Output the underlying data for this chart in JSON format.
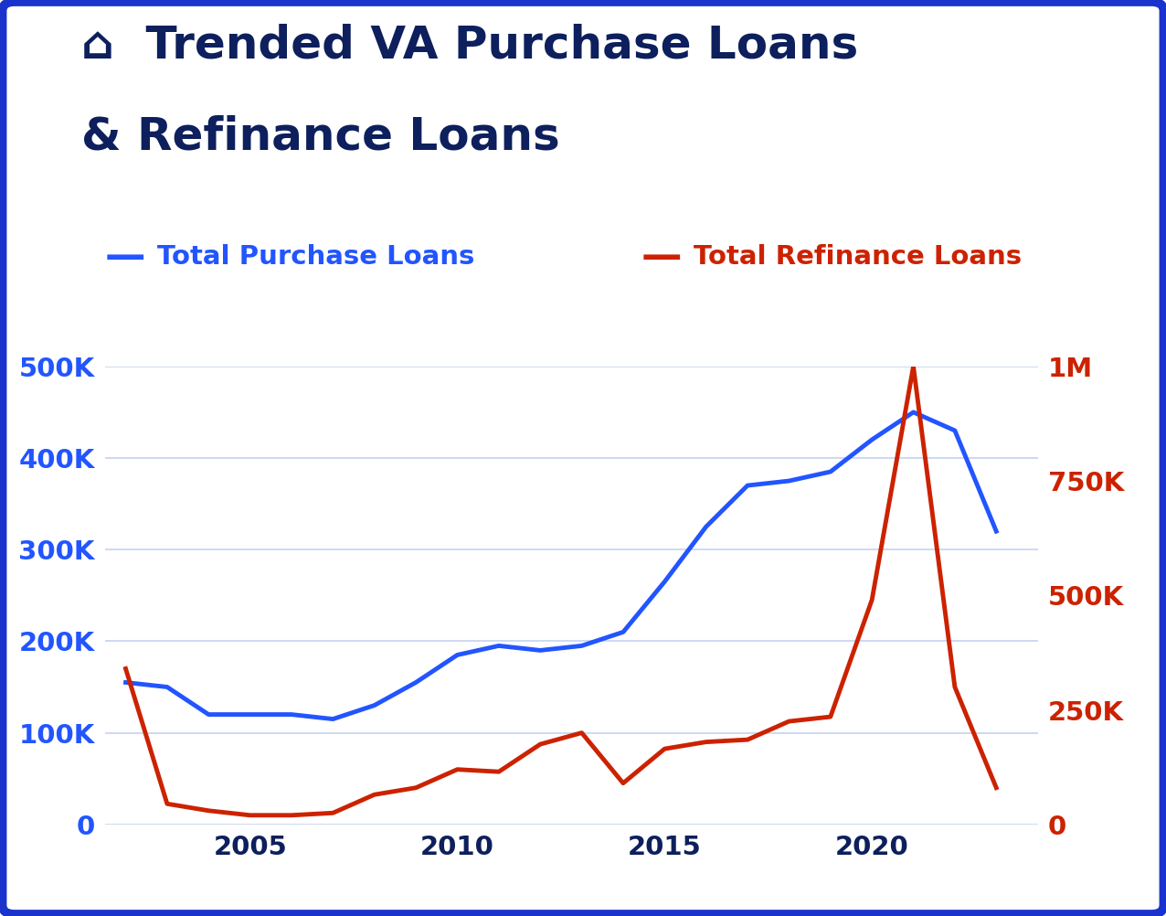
{
  "title_line1": "Trended VA Purchase Loans",
  "title_line2": "& Refinance Loans",
  "title_color": "#0d1f5c",
  "title_fontsize": 36,
  "background_color": "#ffffff",
  "border_color": "#1a33cc",
  "legend_purchase_label": "Total Purchase Loans",
  "legend_refi_label": "Total Refinance Loans",
  "purchase_color": "#2255ff",
  "refi_color": "#cc2200",
  "purchase_years": [
    2002,
    2003,
    2004,
    2005,
    2006,
    2007,
    2008,
    2009,
    2010,
    2011,
    2012,
    2013,
    2014,
    2015,
    2016,
    2017,
    2018,
    2019,
    2020,
    2021,
    2022,
    2023
  ],
  "purchase_values": [
    155000,
    150000,
    120000,
    120000,
    120000,
    115000,
    130000,
    155000,
    185000,
    195000,
    190000,
    195000,
    210000,
    265000,
    325000,
    370000,
    375000,
    385000,
    420000,
    450000,
    430000,
    320000
  ],
  "refi_years": [
    2002,
    2003,
    2004,
    2005,
    2006,
    2007,
    2008,
    2009,
    2010,
    2011,
    2012,
    2013,
    2014,
    2015,
    2016,
    2017,
    2018,
    2019,
    2020,
    2021,
    2022,
    2023
  ],
  "refi_values": [
    340000,
    45000,
    30000,
    20000,
    20000,
    25000,
    65000,
    80000,
    120000,
    115000,
    175000,
    200000,
    90000,
    165000,
    180000,
    185000,
    225000,
    235000,
    490000,
    1000000,
    300000,
    80000
  ],
  "left_ylim": [
    0,
    500000
  ],
  "right_ylim": [
    0,
    1000000
  ],
  "left_yticks": [
    0,
    100000,
    200000,
    300000,
    400000,
    500000
  ],
  "left_yticklabels": [
    "0",
    "100K",
    "200K",
    "300K",
    "400K",
    "500K"
  ],
  "right_yticks": [
    0,
    250000,
    500000,
    750000,
    1000000
  ],
  "right_yticklabels": [
    "0",
    "250K",
    "500K",
    "750K",
    "1M"
  ],
  "xlim": [
    2001.5,
    2024.0
  ],
  "xticks": [
    2005,
    2010,
    2015,
    2020
  ],
  "grid_color": "#c5d3f0",
  "tick_color_left": "#2255ff",
  "tick_color_right": "#cc2200",
  "tick_color_x": "#0d1f5c",
  "line_width": 3.5,
  "legend_fontsize": 21,
  "tick_fontsize": 21,
  "title_icon": "⌂"
}
